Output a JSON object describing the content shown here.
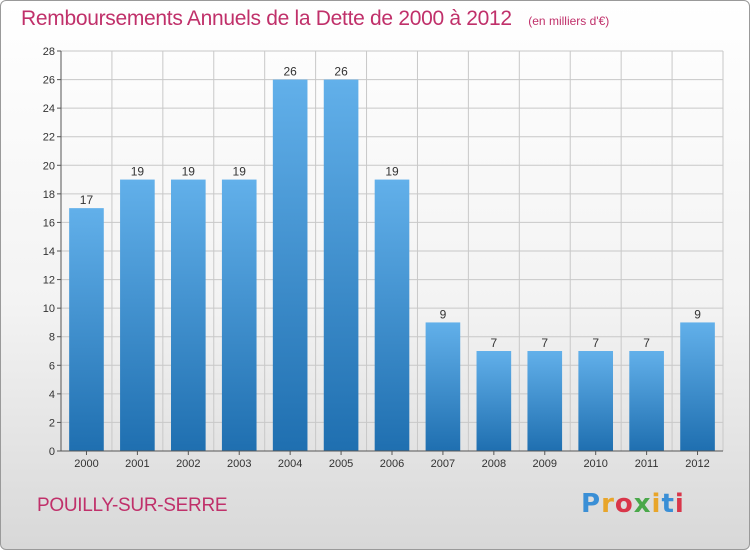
{
  "chart_data": {
    "type": "bar",
    "title": "Remboursements Annuels de la Dette de 2000 à 2012",
    "subtitle": "(en milliers d'€)",
    "categories": [
      "2000",
      "2001",
      "2002",
      "2003",
      "2004",
      "2005",
      "2006",
      "2007",
      "2008",
      "2009",
      "2010",
      "2011",
      "2012"
    ],
    "values": [
      17,
      19,
      19,
      19,
      26,
      26,
      19,
      9,
      7,
      7,
      7,
      7,
      9
    ],
    "data_labels": [
      "17",
      "19",
      "19",
      "19",
      "26",
      "26",
      "19",
      "9",
      "7",
      "7",
      "7",
      "7",
      "9"
    ],
    "ylim": [
      0,
      28
    ],
    "yticks": [
      0,
      2,
      4,
      6,
      8,
      10,
      12,
      14,
      16,
      18,
      20,
      22,
      24,
      26,
      28
    ],
    "grid": true,
    "xlabel": "",
    "ylabel": ""
  },
  "footer": {
    "commune": "POUILLY-SUR-SERRE",
    "logo_text": "Proxiti"
  },
  "colors": {
    "title": "#c0306a",
    "bar_top": "#62b0ea",
    "bar_bottom": "#1f6fb0",
    "grid": "#c8c8c8"
  }
}
